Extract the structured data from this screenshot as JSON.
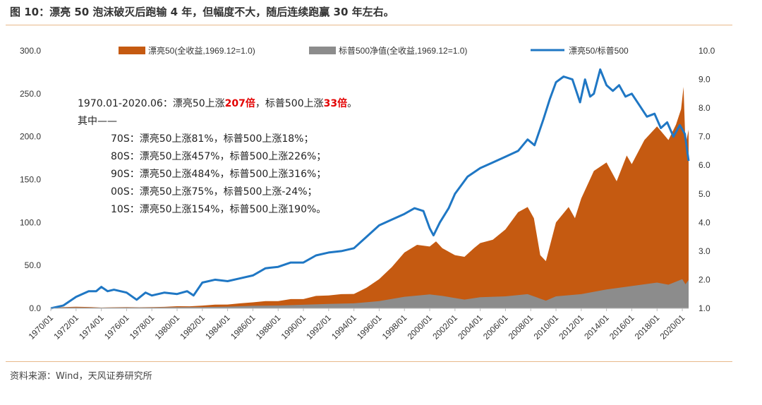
{
  "figure": {
    "title": "图 10：漂亮 50 泡沫破灭后跑输 4 年，但幅度不大，随后连续跑赢 30 年左右。",
    "source": "资料来源：Wind，天风证券研究所"
  },
  "colors": {
    "nifty": "#c55a11",
    "sp500": "#8c8c8c",
    "ratio": "#1f77c4",
    "accent_rule": "#e8b98a",
    "highlight": "#e30000"
  },
  "annotation": {
    "line1_prefix": "1970.01-2020.06：漂亮50上涨",
    "line1_v1": "207倍",
    "line1_mid": "，标普500上涨",
    "line1_v2": "33倍",
    "line1_end": "。",
    "line2": "其中——",
    "decades": [
      "70S：漂亮50上涨81%，标普500上涨18%；",
      "80S：漂亮50上涨457%，标普500上涨226%；",
      "90S：漂亮50上涨484%，标普500上涨316%；",
      "00S：漂亮50上涨75%，标普500上涨-24%；",
      "10S：漂亮50上涨154%，标普500上涨190%。"
    ]
  },
  "chart_data": {
    "type": "area",
    "x_ticks": [
      "1970/01",
      "1972/01",
      "1974/01",
      "1976/01",
      "1978/01",
      "1980/01",
      "1982/01",
      "1984/01",
      "1986/01",
      "1988/01",
      "1990/01",
      "1992/01",
      "1994/01",
      "1996/01",
      "1998/01",
      "2000/01",
      "2002/01",
      "2004/01",
      "2006/01",
      "2008/01",
      "2010/01",
      "2012/01",
      "2014/01",
      "2016/01",
      "2018/01",
      "2020/01"
    ],
    "y_left": {
      "ticks": [
        "0.0",
        "50.0",
        "100.0",
        "150.0",
        "200.0",
        "250.0",
        "300.0"
      ],
      "range": [
        0,
        300
      ]
    },
    "y_right": {
      "ticks": [
        "1.0",
        "2.0",
        "3.0",
        "4.0",
        "5.0",
        "6.0",
        "7.0",
        "8.0",
        "9.0",
        "10.0"
      ],
      "range": [
        1,
        10
      ]
    },
    "x_range": [
      1970.0,
      2020.5
    ],
    "legend_position": "top",
    "series": [
      {
        "name": "漂亮50(全收益,1969.12=1.0)",
        "kind": "area",
        "axis": "left",
        "x": [
          1970.0,
          1971.0,
          1972.0,
          1973.0,
          1974.0,
          1975.0,
          1976.0,
          1977.0,
          1978.0,
          1979.0,
          1980.0,
          1981.0,
          1982.0,
          1983.0,
          1984.0,
          1985.0,
          1986.0,
          1987.0,
          1988.0,
          1989.0,
          1990.0,
          1991.0,
          1992.0,
          1993.0,
          1994.0,
          1995.0,
          1996.0,
          1997.0,
          1998.0,
          1999.0,
          2000.0,
          2000.5,
          2001.0,
          2002.0,
          2002.75,
          2003.5,
          2004.0,
          2005.0,
          2006.0,
          2007.0,
          2007.75,
          2008.25,
          2008.75,
          2009.2,
          2010.0,
          2011.0,
          2011.5,
          2012.0,
          2013.0,
          2014.0,
          2014.8,
          2015.6,
          2016.0,
          2017.0,
          2018.0,
          2018.9,
          2019.5,
          2019.9,
          2020.1,
          2020.25,
          2020.5
        ],
        "y": [
          1.0,
          1.4,
          1.8,
          1.6,
          0.9,
          1.2,
          1.4,
          1.2,
          1.5,
          1.7,
          2.5,
          2.4,
          3.2,
          4.3,
          4.4,
          5.8,
          7.0,
          8.5,
          8.4,
          10.8,
          10.8,
          14.5,
          15.0,
          16.5,
          16.8,
          24.0,
          34.0,
          48.0,
          65.0,
          74.0,
          72.0,
          78.0,
          70.0,
          62.0,
          60.0,
          70.0,
          76.0,
          80.0,
          92.0,
          112.0,
          118.0,
          105.0,
          62.0,
          55.0,
          100.0,
          118.0,
          105.0,
          128.0,
          160.0,
          170.0,
          148.0,
          178.0,
          168.0,
          196.0,
          212.0,
          196.0,
          214.0,
          232.0,
          258.0,
          190.0,
          208.0
        ]
      },
      {
        "name": "标普500净值(全收益,1969.12=1.0)",
        "kind": "area",
        "axis": "left",
        "x": [
          1970.0,
          1972.0,
          1974.0,
          1976.0,
          1978.0,
          1980.0,
          1982.0,
          1984.0,
          1986.0,
          1988.0,
          1990.0,
          1992.0,
          1994.0,
          1996.0,
          1998.0,
          2000.0,
          2001.0,
          2002.75,
          2004.0,
          2006.0,
          2007.75,
          2009.2,
          2010.0,
          2012.0,
          2014.0,
          2016.0,
          2018.0,
          2018.9,
          2020.0,
          2020.25,
          2020.5
        ],
        "y": [
          1.0,
          1.1,
          0.8,
          1.0,
          1.0,
          1.3,
          1.5,
          2.0,
          3.0,
          3.3,
          4.2,
          5.2,
          5.8,
          8.5,
          13.5,
          16.3,
          14.5,
          10.2,
          13.0,
          14.0,
          16.5,
          9.0,
          14.0,
          16.5,
          22.0,
          26.0,
          30.0,
          27.5,
          34.0,
          28.0,
          33.0
        ]
      },
      {
        "name": "漂亮50/标普500",
        "kind": "line",
        "axis": "right",
        "x": [
          1970.0,
          1971.0,
          1972.0,
          1973.0,
          1973.6,
          1974.0,
          1974.5,
          1975.0,
          1976.0,
          1976.8,
          1977.5,
          1978.0,
          1979.0,
          1980.0,
          1980.8,
          1981.3,
          1982.0,
          1983.0,
          1984.0,
          1985.0,
          1986.0,
          1987.0,
          1988.0,
          1989.0,
          1990.0,
          1991.0,
          1992.0,
          1993.0,
          1994.0,
          1995.0,
          1996.0,
          1997.0,
          1998.0,
          1998.8,
          1999.5,
          2000.0,
          2000.3,
          2000.8,
          2001.5,
          2002.0,
          2003.0,
          2004.0,
          2005.0,
          2006.0,
          2007.0,
          2007.75,
          2008.3,
          2009.0,
          2009.5,
          2010.0,
          2010.6,
          2011.3,
          2011.9,
          2012.3,
          2012.7,
          2013.0,
          2013.5,
          2014.0,
          2014.5,
          2015.0,
          2015.5,
          2016.0,
          2016.6,
          2017.2,
          2017.8,
          2018.3,
          2018.8,
          2019.3,
          2019.8,
          2020.2,
          2020.5
        ],
        "y": [
          1.0,
          1.1,
          1.4,
          1.6,
          1.6,
          1.75,
          1.6,
          1.65,
          1.55,
          1.3,
          1.55,
          1.45,
          1.55,
          1.5,
          1.6,
          1.45,
          1.9,
          2.0,
          1.95,
          2.05,
          2.15,
          2.4,
          2.45,
          2.6,
          2.6,
          2.85,
          2.95,
          3.0,
          3.1,
          3.5,
          3.9,
          4.1,
          4.3,
          4.5,
          4.4,
          3.8,
          3.55,
          4.0,
          4.5,
          5.0,
          5.6,
          5.9,
          6.1,
          6.3,
          6.5,
          6.9,
          6.7,
          7.6,
          8.3,
          8.9,
          9.1,
          9.0,
          8.2,
          9.0,
          8.4,
          8.5,
          9.35,
          8.8,
          8.6,
          8.8,
          8.4,
          8.5,
          8.1,
          7.7,
          7.8,
          7.3,
          7.5,
          7.0,
          7.4,
          7.1,
          6.15
        ]
      }
    ]
  }
}
